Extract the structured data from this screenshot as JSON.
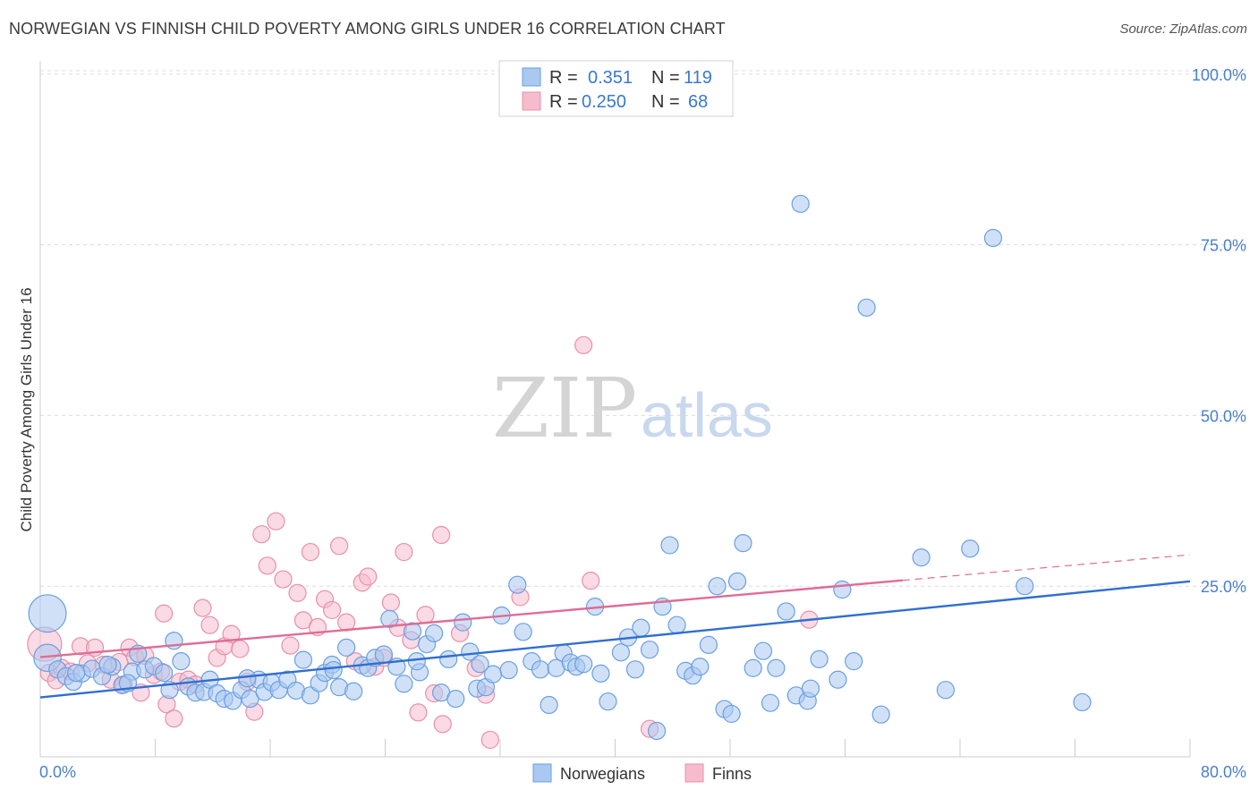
{
  "header": {
    "title": "NORWEGIAN VS FINNISH CHILD POVERTY AMONG GIRLS UNDER 16 CORRELATION CHART",
    "source": "Source: ZipAtlas.com"
  },
  "watermark": {
    "zip": "ZIP",
    "atlas": "atlas"
  },
  "legend_stats": {
    "r_label": "R =",
    "n_label": "N =",
    "norwegians": {
      "r": "0.351",
      "n": "119"
    },
    "finns": {
      "r": "0.250",
      "n": "68"
    }
  },
  "colors": {
    "norwegians_fill": "#aac8f0",
    "norwegians_stroke": "#6a9fe0",
    "norwegians_line": "#2f6fd0",
    "finns_fill": "#f6bccd",
    "finns_stroke": "#e890aa",
    "finns_line": "#e06c96",
    "tick_text": "#4a7fcc"
  },
  "chart_data": {
    "type": "scatter",
    "title": "NORWEGIAN VS FINNISH CHILD POVERTY AMONG GIRLS UNDER 16 CORRELATION CHART",
    "ylabel": "Child Poverty Among Girls Under 16",
    "xlabel": "",
    "xlim": [
      0,
      80
    ],
    "ylim": [
      0,
      100
    ],
    "x_tick_labels": [
      "0.0%",
      "80.0%"
    ],
    "y_tick_values": [
      25,
      50,
      75,
      100
    ],
    "y_tick_labels": [
      "25.0%",
      "50.0%",
      "75.0%",
      "100.0%"
    ],
    "grid": true,
    "legend_position": "top-center",
    "series": [
      {
        "name": "Norwegians",
        "r": 0.351,
        "n": 119,
        "trend": {
          "x": [
            0,
            80
          ],
          "y": [
            8.7,
            25.7
          ]
        },
        "points": [
          [
            0.5,
            21,
            2.2
          ],
          [
            0.5,
            14.5,
            1.6
          ],
          [
            1.2,
            12.8,
            1
          ],
          [
            1.8,
            11.8,
            1
          ],
          [
            2.3,
            11,
            1
          ],
          [
            2.9,
            12.2,
            1
          ],
          [
            3.6,
            12.9,
            1
          ],
          [
            4.3,
            11.8,
            1
          ],
          [
            5,
            13.2,
            1
          ],
          [
            5.7,
            10.5,
            1
          ],
          [
            6.4,
            12.5,
            1
          ],
          [
            6.8,
            15.1,
            1
          ],
          [
            7.3,
            12.8,
            1
          ],
          [
            7.9,
            13.3,
            1
          ],
          [
            8.6,
            12.3,
            1
          ],
          [
            9.3,
            17,
            1
          ],
          [
            9.8,
            14,
            1
          ],
          [
            10.3,
            10.3,
            1
          ],
          [
            10.8,
            9.4,
            1
          ],
          [
            11.4,
            9.5,
            1
          ],
          [
            11.8,
            11.3,
            1
          ],
          [
            12.3,
            9.3,
            1
          ],
          [
            12.8,
            8.5,
            1
          ],
          [
            13.4,
            8.2,
            1
          ],
          [
            14,
            9.8,
            1
          ],
          [
            14.6,
            8.5,
            1
          ],
          [
            15.2,
            11.3,
            1
          ],
          [
            15.6,
            9.5,
            1
          ],
          [
            16.1,
            10.9,
            1
          ],
          [
            16.6,
            9.8,
            1
          ],
          [
            17.2,
            11.3,
            1
          ],
          [
            17.8,
            9.7,
            1
          ],
          [
            18.3,
            14.2,
            1
          ],
          [
            18.8,
            9,
            1
          ],
          [
            19.4,
            10.8,
            1
          ],
          [
            19.8,
            12.3,
            1
          ],
          [
            20.3,
            13.5,
            1
          ],
          [
            20.8,
            10.2,
            1
          ],
          [
            21.3,
            16,
            1
          ],
          [
            21.8,
            9.6,
            1
          ],
          [
            22.4,
            13.4,
            1
          ],
          [
            22.8,
            13,
            1
          ],
          [
            23.3,
            14.5,
            1
          ],
          [
            23.9,
            15,
            1
          ],
          [
            24.3,
            20.2,
            1
          ],
          [
            24.8,
            13.2,
            1
          ],
          [
            25.3,
            10.7,
            1
          ],
          [
            25.9,
            18.4,
            1
          ],
          [
            26.4,
            12.4,
            1
          ],
          [
            26.9,
            16.5,
            1
          ],
          [
            27.4,
            18.1,
            1
          ],
          [
            27.9,
            9.4,
            1
          ],
          [
            28.4,
            14.3,
            1
          ],
          [
            28.9,
            8.5,
            1
          ],
          [
            29.4,
            19.7,
            1
          ],
          [
            29.9,
            15.4,
            1
          ],
          [
            30.4,
            10,
            1
          ],
          [
            31,
            10.2,
            1
          ],
          [
            31.5,
            12.1,
            1
          ],
          [
            32.1,
            20.7,
            1
          ],
          [
            32.6,
            12.7,
            1
          ],
          [
            33.2,
            25.2,
            1
          ],
          [
            33.6,
            18.3,
            1
          ],
          [
            34.2,
            14,
            1
          ],
          [
            34.8,
            12.8,
            1
          ],
          [
            35.4,
            7.6,
            1
          ],
          [
            35.9,
            13,
            1
          ],
          [
            36.4,
            15.2,
            1
          ],
          [
            36.9,
            13.8,
            1
          ],
          [
            37.3,
            13.2,
            1
          ],
          [
            37.8,
            13.6,
            1
          ],
          [
            38.6,
            22,
            1
          ],
          [
            39,
            12.2,
            1
          ],
          [
            39.5,
            8.1,
            1
          ],
          [
            40.4,
            15.3,
            1
          ],
          [
            40.9,
            17.5,
            1
          ],
          [
            41.4,
            12.8,
            1
          ],
          [
            41.8,
            18.9,
            1
          ],
          [
            42.4,
            15.7,
            1
          ],
          [
            42.9,
            3.8,
            1
          ],
          [
            43.3,
            22,
            1
          ],
          [
            43.8,
            31,
            1
          ],
          [
            44.3,
            19.3,
            1
          ],
          [
            44.9,
            12.6,
            1
          ],
          [
            45.4,
            11.9,
            1
          ],
          [
            45.9,
            13.2,
            1
          ],
          [
            46.5,
            16.4,
            1
          ],
          [
            47.1,
            25,
            1
          ],
          [
            47.6,
            7,
            1
          ],
          [
            48.1,
            6.3,
            1
          ],
          [
            48.5,
            25.7,
            1
          ],
          [
            48.9,
            31.3,
            1
          ],
          [
            49.6,
            13,
            1
          ],
          [
            50.3,
            15.5,
            1
          ],
          [
            50.8,
            7.9,
            1
          ],
          [
            51.2,
            13,
            1
          ],
          [
            51.9,
            21.3,
            1
          ],
          [
            52.6,
            9,
            1
          ],
          [
            52.9,
            81,
            1
          ],
          [
            53.4,
            8.2,
            1
          ],
          [
            53.6,
            10,
            1
          ],
          [
            54.2,
            14.3,
            1
          ],
          [
            55.5,
            11.3,
            1
          ],
          [
            55.8,
            24.5,
            1
          ],
          [
            56.6,
            14,
            1
          ],
          [
            57.5,
            65.8,
            1
          ],
          [
            58.5,
            6.2,
            1
          ],
          [
            61.3,
            29.2,
            1
          ],
          [
            63,
            9.8,
            1
          ],
          [
            64.7,
            30.5,
            1
          ],
          [
            66.3,
            76,
            1
          ],
          [
            68.5,
            25,
            1
          ],
          [
            72.5,
            8,
            1
          ],
          [
            2.5,
            12.3,
            1
          ],
          [
            4.7,
            13.5,
            1
          ],
          [
            6.1,
            10.8,
            1
          ],
          [
            9,
            9.8,
            1
          ],
          [
            14.4,
            11.5,
            1
          ],
          [
            20.4,
            12.7,
            1
          ],
          [
            26.2,
            14,
            1
          ],
          [
            30.6,
            13.6,
            1
          ]
        ]
      },
      {
        "name": "Finns",
        "r": 0.25,
        "n": 68,
        "trend": {
          "x": [
            0,
            80
          ],
          "y": [
            14.6,
            29.6
          ]
        },
        "trend_solid_until_x": 60,
        "points": [
          [
            0.3,
            16.5,
            2
          ],
          [
            0.6,
            12.3,
            1
          ],
          [
            1.1,
            11.2,
            1
          ],
          [
            1.5,
            13,
            1
          ],
          [
            2.1,
            12.5,
            1
          ],
          [
            2.8,
            16.2,
            1
          ],
          [
            3.3,
            13.7,
            1
          ],
          [
            3.8,
            16,
            1
          ],
          [
            4.4,
            13.5,
            1
          ],
          [
            4.9,
            11.3,
            1
          ],
          [
            5.5,
            13.9,
            1
          ],
          [
            5.8,
            10.6,
            1
          ],
          [
            6.2,
            16,
            1
          ],
          [
            6.6,
            14.6,
            1
          ],
          [
            7,
            9.4,
            1
          ],
          [
            7.3,
            14.8,
            1
          ],
          [
            7.9,
            12,
            1
          ],
          [
            8.4,
            12.5,
            1
          ],
          [
            8.6,
            21,
            1
          ],
          [
            8.8,
            7.7,
            1
          ],
          [
            9.3,
            5.6,
            1
          ],
          [
            9.7,
            11,
            1
          ],
          [
            10.3,
            11.3,
            1
          ],
          [
            10.8,
            10.6,
            1
          ],
          [
            11.3,
            21.8,
            1
          ],
          [
            11.8,
            19.3,
            1
          ],
          [
            12.3,
            14.5,
            1
          ],
          [
            12.8,
            16.2,
            1
          ],
          [
            13.3,
            18,
            1
          ],
          [
            13.9,
            15.8,
            1
          ],
          [
            14.4,
            11,
            1
          ],
          [
            14.9,
            6.6,
            1
          ],
          [
            15.4,
            32.6,
            1
          ],
          [
            15.8,
            28,
            1
          ],
          [
            16.4,
            34.5,
            1
          ],
          [
            16.9,
            26,
            1
          ],
          [
            17.4,
            16.3,
            1
          ],
          [
            17.9,
            24,
            1
          ],
          [
            18.3,
            20,
            1
          ],
          [
            18.8,
            30,
            1
          ],
          [
            19.3,
            19,
            1
          ],
          [
            19.8,
            23.1,
            1
          ],
          [
            20.3,
            21.5,
            1
          ],
          [
            20.8,
            30.9,
            1
          ],
          [
            21.3,
            19.7,
            1
          ],
          [
            21.9,
            14,
            1
          ],
          [
            22.4,
            25.5,
            1
          ],
          [
            22.8,
            26.4,
            1
          ],
          [
            23.3,
            13.2,
            1
          ],
          [
            23.9,
            14.5,
            1
          ],
          [
            24.4,
            22.6,
            1
          ],
          [
            24.9,
            18.9,
            1
          ],
          [
            25.3,
            30,
            1
          ],
          [
            25.8,
            17.1,
            1
          ],
          [
            26.3,
            6.5,
            1
          ],
          [
            26.8,
            20.8,
            1
          ],
          [
            27.4,
            9.3,
            1
          ],
          [
            27.9,
            32.5,
            1
          ],
          [
            28,
            4.8,
            1
          ],
          [
            29.2,
            18.1,
            1
          ],
          [
            30.3,
            13,
            1
          ],
          [
            31,
            9.1,
            1
          ],
          [
            31.3,
            2.5,
            1
          ],
          [
            33.4,
            23.4,
            1
          ],
          [
            37.8,
            60.3,
            1
          ],
          [
            38.3,
            25.8,
            1
          ],
          [
            42.4,
            4.1,
            1
          ],
          [
            53.5,
            20.1,
            1
          ]
        ]
      }
    ]
  },
  "bottom_legend": {
    "norwegians_label": "Norwegians",
    "finns_label": "Finns"
  }
}
